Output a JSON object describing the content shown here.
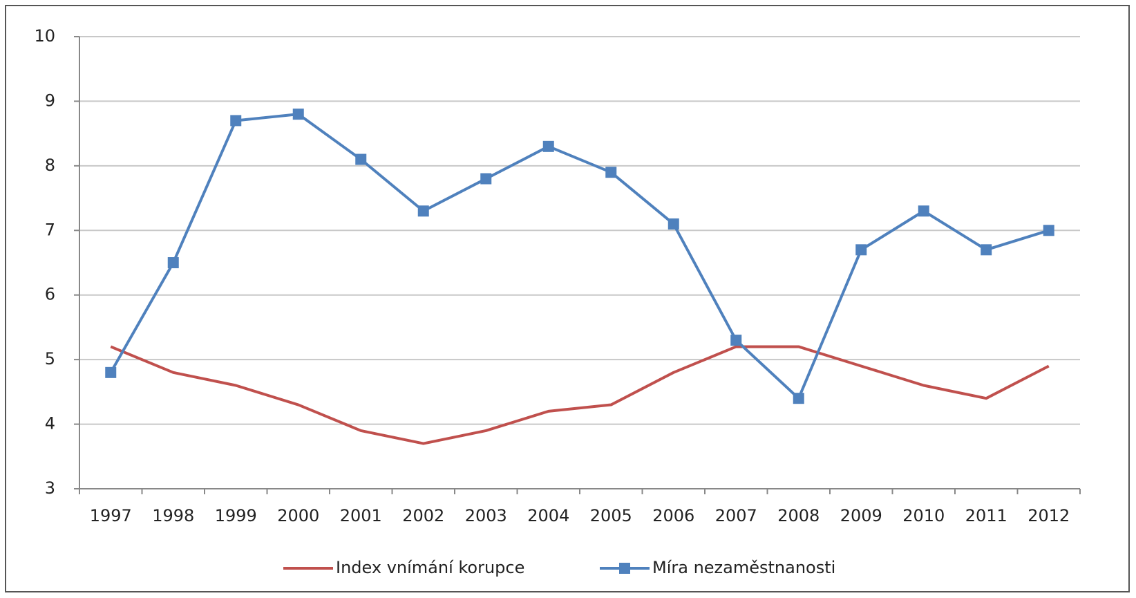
{
  "chart_data": {
    "type": "line",
    "categories": [
      "1997",
      "1998",
      "1999",
      "2000",
      "2001",
      "2002",
      "2003",
      "2004",
      "2005",
      "2006",
      "2007",
      "2008",
      "2009",
      "2010",
      "2011",
      "2012"
    ],
    "series": [
      {
        "name": "Index vnímání korupce",
        "color": "#c0504d",
        "marker": false,
        "values": [
          5.2,
          4.8,
          4.6,
          4.3,
          3.9,
          3.7,
          3.9,
          4.2,
          4.3,
          4.8,
          5.2,
          5.2,
          4.9,
          4.6,
          4.4,
          4.9
        ]
      },
      {
        "name": "Míra nezaměstnanosti",
        "color": "#4f81bd",
        "marker": true,
        "values": [
          4.8,
          6.5,
          8.7,
          8.8,
          8.1,
          7.3,
          7.8,
          8.3,
          7.9,
          7.1,
          5.3,
          4.4,
          6.7,
          7.3,
          6.7,
          7.0
        ]
      }
    ],
    "ylim": [
      3,
      10
    ],
    "yticks": [
      3,
      4,
      5,
      6,
      7,
      8,
      9,
      10
    ],
    "grid": true,
    "legend": "bottom"
  }
}
